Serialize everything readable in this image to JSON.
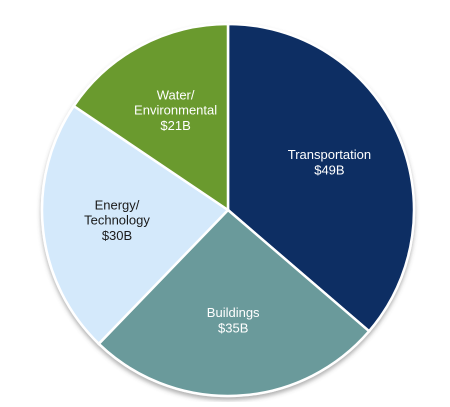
{
  "chart_data": {
    "type": "pie",
    "categories": [
      "Transportation",
      "Buildings",
      "Energy/\nTechnology",
      "Water/\nEnvironmental"
    ],
    "values": [
      49,
      35,
      30,
      21
    ],
    "value_labels": [
      "$49B",
      "$35B",
      "$30B",
      "$21B"
    ],
    "colors": [
      "#0e2f64",
      "#6a9a9b",
      "#d4e9fb",
      "#6a9a2d"
    ]
  }
}
